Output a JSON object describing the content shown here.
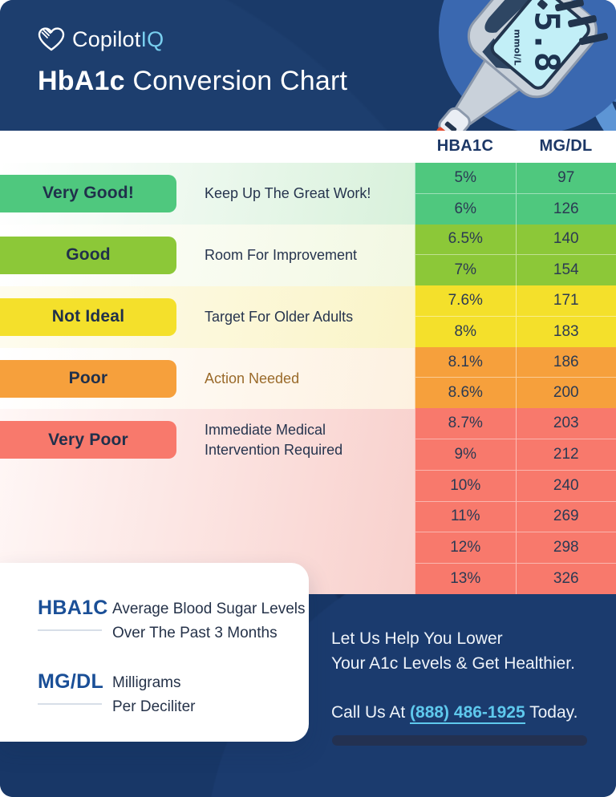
{
  "brand": {
    "name_primary": "Copilot",
    "name_secondary": "IQ"
  },
  "header": {
    "title_bold": "HbA1c",
    "title_rest": "Conversion Chart"
  },
  "meter": {
    "reading": "5.8",
    "unit": "mmol/L"
  },
  "table": {
    "col1": "HBA1C",
    "col2": "MG/DL",
    "rows": [
      {
        "hba1c": "5%",
        "mgdl": "97",
        "level": "very-good"
      },
      {
        "hba1c": "6%",
        "mgdl": "126",
        "level": "very-good"
      },
      {
        "hba1c": "6.5%",
        "mgdl": "140",
        "level": "good"
      },
      {
        "hba1c": "7%",
        "mgdl": "154",
        "level": "good"
      },
      {
        "hba1c": "7.6%",
        "mgdl": "171",
        "level": "not-ideal"
      },
      {
        "hba1c": "8%",
        "mgdl": "183",
        "level": "not-ideal"
      },
      {
        "hba1c": "8.1%",
        "mgdl": "186",
        "level": "poor"
      },
      {
        "hba1c": "8.6%",
        "mgdl": "200",
        "level": "poor"
      },
      {
        "hba1c": "8.7%",
        "mgdl": "203",
        "level": "very-poor"
      },
      {
        "hba1c": "9%",
        "mgdl": "212",
        "level": "very-poor"
      },
      {
        "hba1c": "10%",
        "mgdl": "240",
        "level": "very-poor"
      },
      {
        "hba1c": "11%",
        "mgdl": "269",
        "level": "very-poor"
      },
      {
        "hba1c": "12%",
        "mgdl": "298",
        "level": "very-poor"
      },
      {
        "hba1c": "13%",
        "mgdl": "326",
        "level": "very-poor"
      }
    ]
  },
  "categories": [
    {
      "id": "very-good",
      "label": "Very Good!",
      "description_lines": [
        "Keep Up The Great Work!"
      ],
      "rows": 2,
      "color": "#4fc87e",
      "tint_from": "#ffffff",
      "tint_to": "#d8f1db",
      "desc_color": "#26344e"
    },
    {
      "id": "good",
      "label": "Good",
      "description_lines": [
        "Room For Improvement"
      ],
      "rows": 2,
      "color": "#8cc838",
      "tint_from": "#ffffff",
      "tint_to": "#f2f8e2",
      "desc_color": "#26344e"
    },
    {
      "id": "not-ideal",
      "label": "Not Ideal",
      "description_lines": [
        "Target For Older Adults"
      ],
      "rows": 2,
      "color": "#f4e02b",
      "tint_from": "#fefcef",
      "tint_to": "#faf4c7",
      "desc_color": "#26344e"
    },
    {
      "id": "poor",
      "label": "Poor",
      "description_lines": [
        "Action Needed"
      ],
      "rows": 2,
      "color": "#f6a03c",
      "tint_from": "#ffffff",
      "tint_to": "#fdf1e0",
      "desc_color": "#9a6a2a"
    },
    {
      "id": "very-poor",
      "label": "Very Poor",
      "description_lines": [
        "Immediate Medical",
        "Intervention Required"
      ],
      "rows": 6,
      "color": "#f8796c",
      "tint_from": "#fff7f6",
      "tint_to": "#f8d0cc",
      "desc_color": "#26344e"
    }
  ],
  "legend": [
    {
      "term": "HBA1C",
      "definition_lines": [
        "Average Blood Sugar Levels",
        "Over The Past 3 Months"
      ]
    },
    {
      "term": "MG/DL",
      "definition_lines": [
        "Milligrams",
        "Per Deciliter"
      ]
    }
  ],
  "cta": {
    "line1": "Let Us Help You Lower",
    "line2": "Your A1c Levels & Get Healthier.",
    "call_prefix": "Call Us At ",
    "phone": "(888) 486-1925",
    "call_suffix": " Today."
  },
  "colors": {
    "navy": "#142e58",
    "accent_cyan": "#5fc9ed",
    "logo_cyan": "#79cfef",
    "header_label_navy": "#1c3766",
    "meter_circle_blue": "#3a68b0"
  }
}
